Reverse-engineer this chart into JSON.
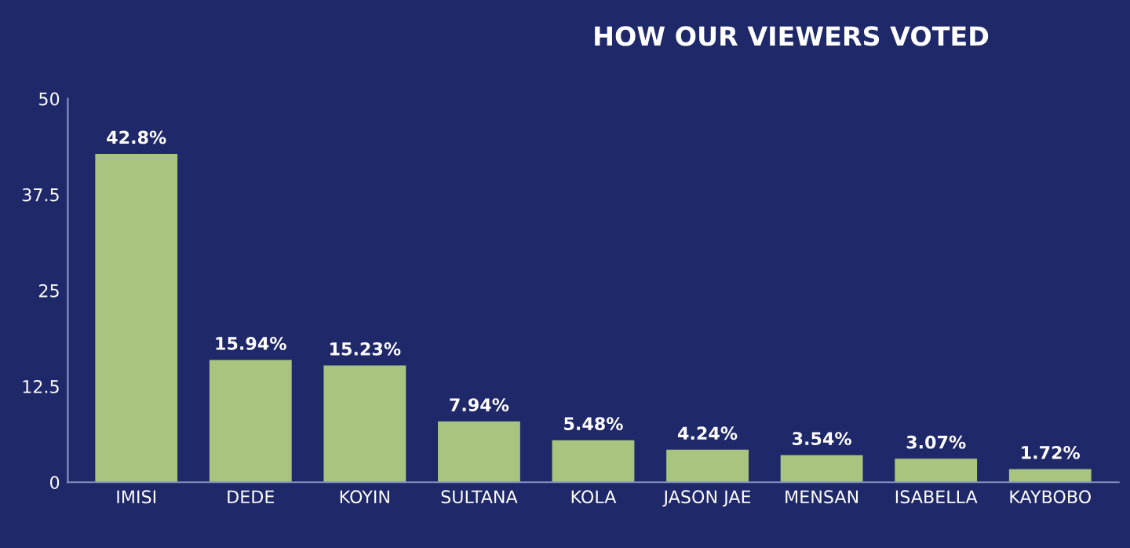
{
  "chart_data": {
    "type": "bar",
    "title": "HOW OUR VIEWERS VOTED",
    "categories": [
      "IMISI",
      "DEDE",
      "KOYIN",
      "SULTANA",
      "KOLA",
      "JASON JAE",
      "MENSAN",
      "ISABELLA",
      "KAYBOBO"
    ],
    "values": [
      42.8,
      15.94,
      15.23,
      7.94,
      5.48,
      4.24,
      3.54,
      3.07,
      1.72
    ],
    "value_labels": [
      "42.8%",
      "15.94%",
      "15.23%",
      "7.94%",
      "5.48%",
      "4.24%",
      "3.54%",
      "3.07%",
      "1.72%"
    ],
    "color": "#a9c47f",
    "ylim": [
      0,
      50
    ],
    "yticks": [
      0,
      12.5,
      25,
      37.5,
      50
    ],
    "grid": false
  }
}
